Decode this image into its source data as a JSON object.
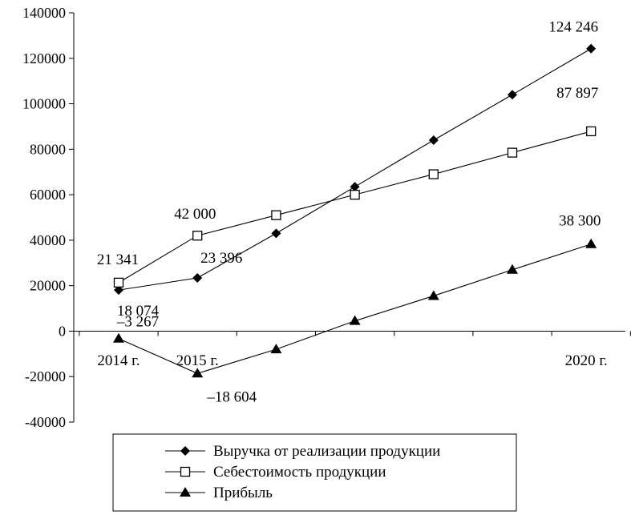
{
  "chart_data": {
    "type": "line",
    "title": "",
    "xlabel": "",
    "ylabel": "",
    "ylim": [
      -40000,
      140000
    ],
    "y_ticks": [
      {
        "value": 140000,
        "label": "140000"
      },
      {
        "value": 120000,
        "label": "120000"
      },
      {
        "value": 100000,
        "label": "100000"
      },
      {
        "value": 80000,
        "label": "80000"
      },
      {
        "value": 60000,
        "label": "60000"
      },
      {
        "value": 40000,
        "label": "40000"
      },
      {
        "value": 20000,
        "label": "20000"
      },
      {
        "value": 0,
        "label": "0"
      },
      {
        "value": -20000,
        "label": "-20000"
      },
      {
        "value": -40000,
        "label": "-40000"
      }
    ],
    "categories": [
      "2014 г.",
      "2015 г.",
      "",
      "",
      "",
      "",
      "2020 г."
    ],
    "grid": false,
    "legend_position": "bottom",
    "series": [
      {
        "name": "Выручка от реализации продукции",
        "marker": "diamond-filled",
        "color": "#000000",
        "values": [
          18074,
          23396,
          43000,
          63500,
          84000,
          104000,
          124246
        ]
      },
      {
        "name": "Себестоимость продукции",
        "marker": "square-open",
        "color": "#000000",
        "values": [
          21341,
          42000,
          51000,
          60000,
          69000,
          78500,
          87897
        ]
      },
      {
        "name": "Прибыль",
        "marker": "triangle-filled",
        "color": "#000000",
        "values": [
          -3267,
          -18604,
          -8000,
          4500,
          15500,
          27000,
          38300
        ]
      }
    ],
    "data_labels": [
      {
        "series": 0,
        "index": 0,
        "text": "18 074"
      },
      {
        "series": 0,
        "index": 1,
        "text": "23 396"
      },
      {
        "series": 0,
        "index": 6,
        "text": "124 246"
      },
      {
        "series": 1,
        "index": 0,
        "text": "21 341"
      },
      {
        "series": 1,
        "index": 1,
        "text": "42 000"
      },
      {
        "series": 1,
        "index": 6,
        "text": "87 897"
      },
      {
        "series": 2,
        "index": 0,
        "text": "–3 267"
      },
      {
        "series": 2,
        "index": 1,
        "text": "–18 604"
      },
      {
        "series": 2,
        "index": 6,
        "text": "38 300"
      }
    ]
  }
}
